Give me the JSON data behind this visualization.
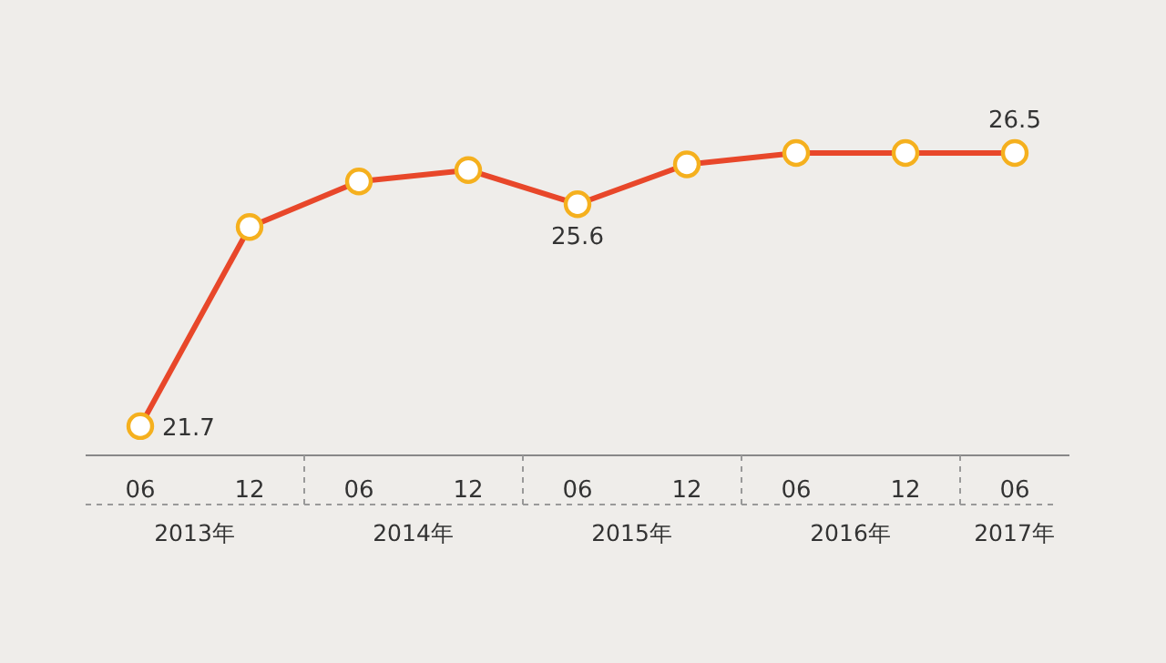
{
  "chart_data": {
    "type": "line",
    "categories": [
      "06",
      "12",
      "06",
      "12",
      "06",
      "12",
      "06",
      "12",
      "06"
    ],
    "series": [
      {
        "color": "#e8472a",
        "values": [
          21.7,
          25.2,
          26.0,
          26.2,
          25.6,
          26.3,
          26.5,
          26.5,
          26.5
        ],
        "value_labels": [
          "21.7",
          null,
          null,
          null,
          "25.6",
          null,
          null,
          null,
          "26.5"
        ]
      }
    ],
    "marker": "circle",
    "line_style": "solid",
    "tick_labels": "x",
    "annotations": [
      "2013年",
      "2014年",
      "2015年",
      "2016年",
      "2017年"
    ]
  }
}
